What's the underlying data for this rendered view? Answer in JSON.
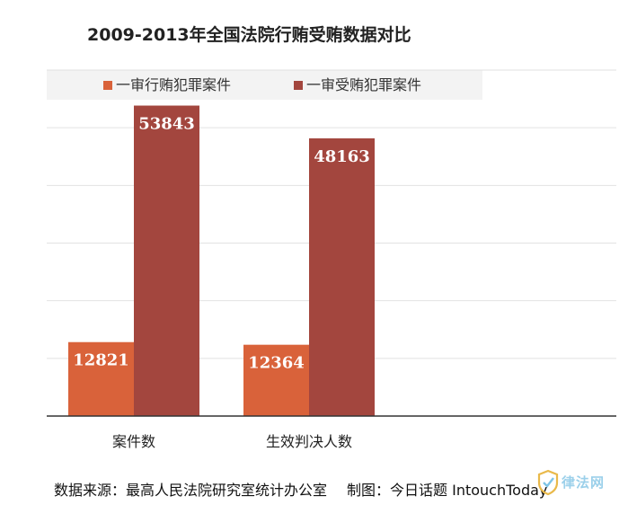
{
  "chart_data": {
    "type": "bar",
    "title": "2009-2013年全国法院行贿受贿数据对比",
    "categories": [
      "案件数",
      "生效判决人数"
    ],
    "series": [
      {
        "name": "一审行贿犯罪案件",
        "values": [
          12821,
          12364
        ],
        "color": "#d9623a"
      },
      {
        "name": "一审受贿犯罪案件",
        "values": [
          53843,
          48163
        ],
        "color": "#a3463e"
      }
    ],
    "ylim": [
      0,
      60000
    ],
    "grid": true,
    "legend": "top-left",
    "xlabel": "",
    "ylabel": ""
  },
  "footer": {
    "source": "数据来源：最高人民法院研究室统计办公室",
    "credit": "制图：今日话题 IntouchToday"
  },
  "watermark": {
    "text": "律法网"
  }
}
